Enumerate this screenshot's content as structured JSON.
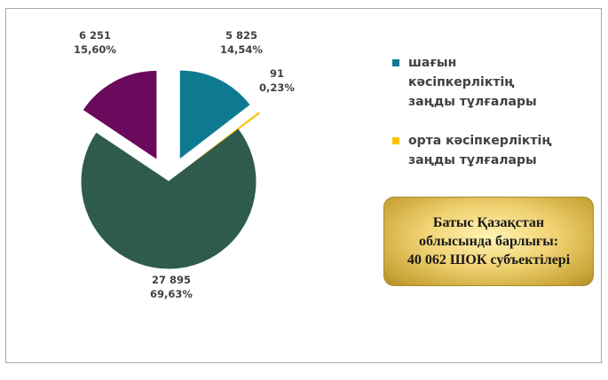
{
  "chart_data": {
    "type": "pie",
    "slices": [
      {
        "name": "шағын кәсіпкерліктің заңды тұлғалары",
        "value": 5825,
        "value_label": "5 825",
        "percent_label": "14,54%",
        "color": "#0e7a91"
      },
      {
        "name": "орта кәсіпкерліктің заңды тұлғалары",
        "value": 91,
        "value_label": "91",
        "percent_label": "0,23%",
        "color": "#ffc000"
      },
      {
        "name": "",
        "value": 27895,
        "value_label": "27 895",
        "percent_label": "69,63%",
        "color": "#2e5b4e"
      },
      {
        "name": "",
        "value": 6251,
        "value_label": "6 251",
        "percent_label": "15,60%",
        "color": "#6b0a5c"
      }
    ],
    "legend_position": "right"
  },
  "legend": [
    {
      "label": "шағын кәсіпкерліктің заңды тұлғалары",
      "color": "#0e7a91"
    },
    {
      "label": "орта кәсіпкерліктің заңды тұлғалары",
      "color": "#ffc000"
    }
  ],
  "info_box": {
    "line1": "Батыс Қазақстан",
    "line2": "облысында барлығы:",
    "line3": "40 062 ШОК субъектілері"
  }
}
